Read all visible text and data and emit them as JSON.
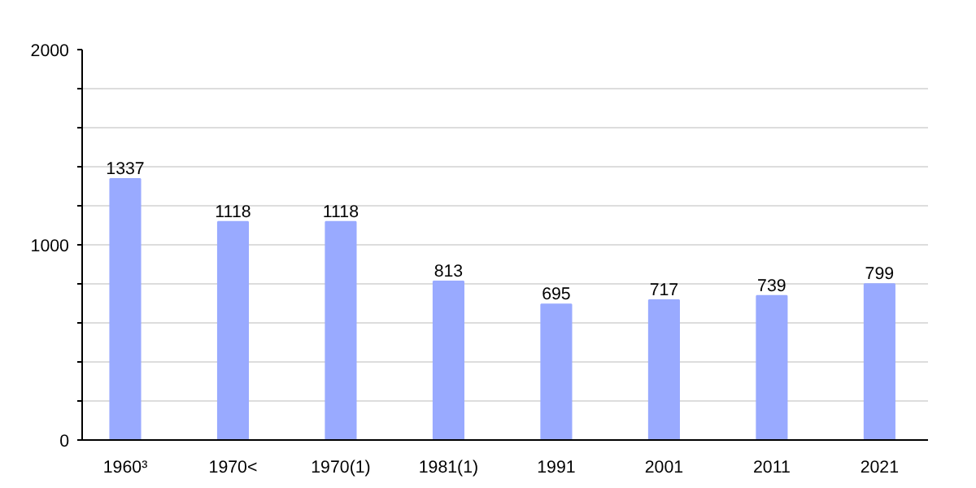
{
  "chart_data": {
    "type": "bar",
    "categories": [
      "1960³",
      "1970<",
      "1970(1)",
      "1981(1)",
      "1991",
      "2001",
      "2011",
      "2021"
    ],
    "values": [
      1337,
      1118,
      1118,
      813,
      695,
      717,
      739,
      799
    ],
    "color": "#99aaff",
    "ylim": [
      0,
      2000
    ],
    "yticks": [
      0,
      {
        "value": 200,
        "label": null
      },
      {
        "value": 400,
        "label": null
      },
      {
        "value": 600,
        "label": null
      },
      {
        "value": 800,
        "label": null
      },
      1000,
      {
        "value": 1200,
        "label": null
      },
      {
        "value": 1400,
        "label": null
      },
      {
        "value": 1600,
        "label": null
      },
      {
        "value": 1800,
        "label": null
      },
      2000
    ],
    "grid": "y",
    "data_labels": true
  }
}
